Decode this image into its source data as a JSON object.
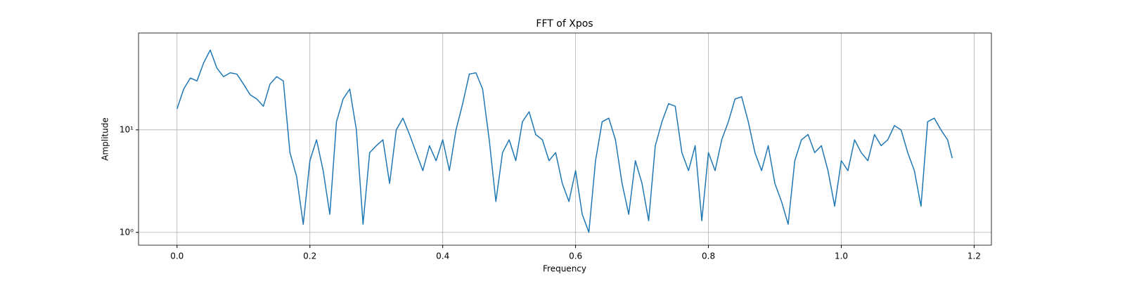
{
  "chart_data": {
    "type": "line",
    "title": "FFT of Xpos",
    "x_label": "Frequency",
    "y_label": "Amplitude",
    "x": [
      0.0,
      0.01,
      0.02,
      0.03,
      0.04,
      0.05,
      0.06,
      0.07,
      0.08,
      0.09,
      0.1,
      0.11,
      0.12,
      0.13,
      0.14,
      0.15,
      0.16,
      0.17,
      0.18,
      0.19,
      0.2,
      0.21,
      0.22,
      0.23,
      0.24,
      0.25,
      0.26,
      0.27,
      0.28,
      0.29,
      0.3,
      0.31,
      0.32,
      0.33,
      0.34,
      0.35,
      0.36,
      0.37,
      0.38,
      0.39,
      0.4,
      0.41,
      0.42,
      0.43,
      0.44,
      0.45,
      0.46,
      0.47,
      0.48,
      0.49,
      0.5,
      0.51,
      0.52,
      0.53,
      0.54,
      0.55,
      0.56,
      0.57,
      0.58,
      0.59,
      0.6,
      0.61,
      0.62,
      0.63,
      0.64,
      0.65,
      0.66,
      0.67,
      0.68,
      0.69,
      0.7,
      0.71,
      0.72,
      0.73,
      0.74,
      0.75,
      0.76,
      0.77,
      0.78,
      0.79,
      0.8,
      0.81,
      0.82,
      0.83,
      0.84,
      0.85,
      0.86,
      0.87,
      0.88,
      0.89,
      0.9,
      0.91,
      0.92,
      0.93,
      0.94,
      0.95,
      0.96,
      0.97,
      0.98,
      0.99,
      1.0,
      1.01,
      1.02,
      1.03,
      1.04,
      1.05,
      1.06,
      1.07,
      1.08,
      1.09,
      1.1,
      1.11,
      1.12,
      1.13,
      1.14,
      1.15,
      1.16,
      1.167
    ],
    "values": [
      16,
      25,
      32,
      30,
      45,
      60,
      40,
      33,
      36,
      35,
      28,
      22,
      20,
      17,
      28,
      33,
      30,
      6,
      3.5,
      1.2,
      5,
      8,
      4,
      1.5,
      12,
      20,
      25,
      10,
      1.2,
      6,
      7,
      8,
      3,
      10,
      13,
      9,
      6,
      4,
      7,
      5,
      8,
      4,
      10,
      18,
      35,
      36,
      25,
      8,
      2,
      6,
      8,
      5,
      12,
      15,
      9,
      8,
      5,
      6,
      3,
      2,
      4,
      1.5,
      1,
      5,
      12,
      13,
      8,
      3,
      1.5,
      5,
      3,
      1.3,
      7,
      12,
      18,
      17,
      6,
      4,
      7,
      1.3,
      6,
      4,
      8,
      12,
      20,
      21,
      12,
      6,
      4,
      7,
      3,
      2,
      1.2,
      5,
      8,
      9,
      6,
      7,
      4,
      1.8,
      5,
      4,
      8,
      6,
      5,
      9,
      7,
      8,
      11,
      10,
      6,
      4,
      1.8,
      12,
      13,
      10,
      8,
      5.3
    ],
    "color": "#1f77b4",
    "xlim": [
      -0.058,
      1.226
    ],
    "xticks": [
      {
        "value": 0.0,
        "label": "0.0"
      },
      {
        "value": 0.2,
        "label": "0.2"
      },
      {
        "value": 0.4,
        "label": "0.4"
      },
      {
        "value": 0.6,
        "label": "0.6"
      },
      {
        "value": 0.8,
        "label": "0.8"
      },
      {
        "value": 1.0,
        "label": "1.0"
      },
      {
        "value": 1.2,
        "label": "1.2"
      }
    ],
    "ylim": [
      0.75,
      88
    ],
    "yticks": [
      {
        "value": 1,
        "label": "10⁰"
      },
      {
        "value": 10,
        "label": "10¹"
      }
    ],
    "y_scale": "log",
    "grid": true
  }
}
